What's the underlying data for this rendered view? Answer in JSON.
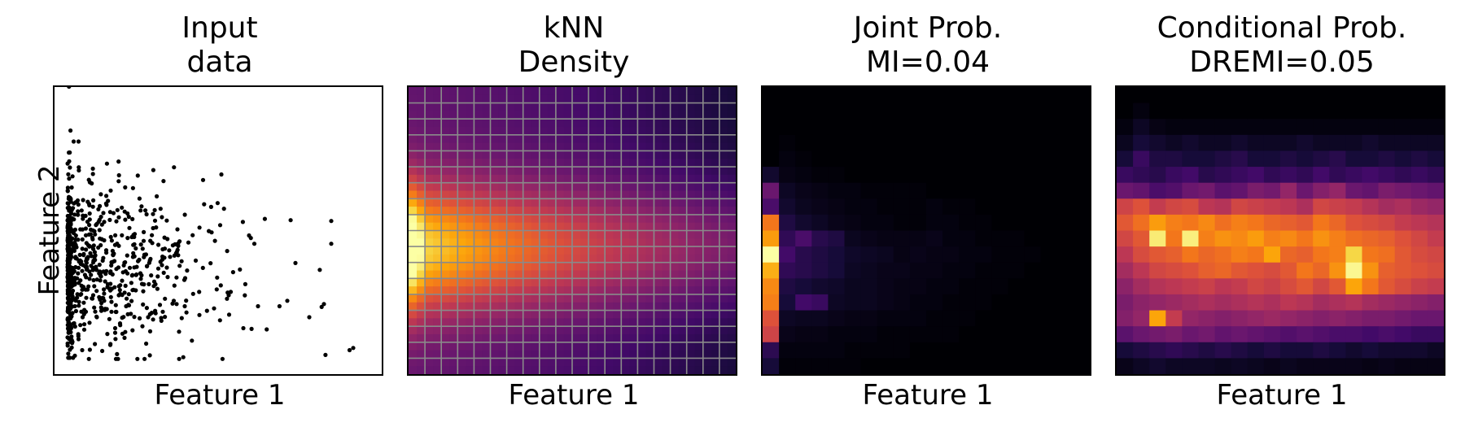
{
  "chart_data": [
    {
      "type": "scatter",
      "title_line1": "Input",
      "title_line2": "data",
      "xlabel": "Feature 1",
      "ylabel": "Feature 2",
      "xticks": [],
      "yticks": [],
      "grid": false,
      "point_color": "#000000",
      "points": [
        [
          0.1,
          0.05
        ],
        [
          0.2,
          0.1
        ],
        [
          0.15,
          0.2
        ],
        [
          0.05,
          0.3
        ],
        [
          0.3,
          0.35
        ],
        [
          0.25,
          0.45
        ],
        [
          0.4,
          0.4
        ],
        [
          0.1,
          0.5
        ],
        [
          0.5,
          0.55
        ],
        [
          0.6,
          0.45
        ],
        [
          0.35,
          0.6
        ],
        [
          0.7,
          0.6
        ],
        [
          0.2,
          0.65
        ],
        [
          0.55,
          0.7
        ],
        [
          0.45,
          0.8
        ],
        [
          0.8,
          0.5
        ],
        [
          0.9,
          0.65
        ],
        [
          1.0,
          0.75
        ],
        [
          1.1,
          0.4
        ],
        [
          0.65,
          0.3
        ],
        [
          0.75,
          0.25
        ],
        [
          0.3,
          0.75
        ],
        [
          0.15,
          0.85
        ],
        [
          0.05,
          0.95
        ],
        [
          1.3,
          0.45
        ],
        [
          1.45,
          0.55
        ],
        [
          1.6,
          0.5
        ],
        [
          1.8,
          0.42
        ],
        [
          2.0,
          0.48
        ],
        [
          2.2,
          0.6
        ],
        [
          2.4,
          0.3
        ],
        [
          2.6,
          0.5
        ],
        [
          3.0,
          0.55
        ],
        [
          3.3,
          0.4
        ],
        [
          3.5,
          0.52
        ],
        [
          3.85,
          0.1
        ],
        [
          3.9,
          0.12
        ],
        [
          1.2,
          0.7
        ],
        [
          0.85,
          0.85
        ],
        [
          0.6,
          0.9
        ],
        [
          0.02,
          1.2
        ],
        [
          0.02,
          1.4
        ],
        [
          0.02,
          1.1
        ],
        [
          0.03,
          1.9
        ],
        [
          0.04,
          2.1
        ],
        [
          0.02,
          2.5
        ],
        [
          1.85,
          1.65
        ],
        [
          0.5,
          1.1
        ],
        [
          0.7,
          1.05
        ],
        [
          1.5,
          1.2
        ],
        [
          2.1,
          1.7
        ],
        [
          1.4,
          0.95
        ],
        [
          0.4,
          1.25
        ],
        [
          0.9,
          1.15
        ]
      ]
    },
    {
      "type": "heatmap",
      "title_line1": "kNN",
      "title_line2": "Density",
      "xlabel": "Feature 1",
      "ylabel": "",
      "xticks": [],
      "yticks": [],
      "grid": true,
      "colormap": "inferno",
      "grid_color": "#8a8a8a"
    },
    {
      "type": "heatmap",
      "title_line1": "Joint Prob.",
      "title_line2": "MI=0.04",
      "xlabel": "Feature 1",
      "ylabel": "",
      "xticks": [],
      "yticks": [],
      "grid": false,
      "colormap": "inferno",
      "rows": [
        [
          0.0,
          0.0,
          0.0,
          0.0,
          0.0,
          0.0,
          0.0,
          0.0,
          0.0,
          0.0,
          0.0,
          0.0,
          0.0,
          0.0,
          0.0,
          0.0,
          0.0,
          0.0,
          0.0,
          0.0
        ],
        [
          0.0,
          0.0,
          0.0,
          0.0,
          0.0,
          0.0,
          0.0,
          0.0,
          0.0,
          0.0,
          0.0,
          0.0,
          0.0,
          0.0,
          0.0,
          0.0,
          0.0,
          0.0,
          0.0,
          0.0
        ],
        [
          0.0,
          0.0,
          0.0,
          0.0,
          0.0,
          0.0,
          0.0,
          0.0,
          0.0,
          0.0,
          0.0,
          0.0,
          0.0,
          0.0,
          0.0,
          0.0,
          0.0,
          0.0,
          0.0,
          0.0
        ],
        [
          0.0,
          0.01,
          0.0,
          0.0,
          0.0,
          0.0,
          0.0,
          0.0,
          0.0,
          0.0,
          0.0,
          0.0,
          0.0,
          0.0,
          0.0,
          0.0,
          0.0,
          0.0,
          0.0,
          0.0
        ],
        [
          0.0,
          0.02,
          0.01,
          0.0,
          0.0,
          0.0,
          0.0,
          0.0,
          0.0,
          0.0,
          0.0,
          0.0,
          0.0,
          0.0,
          0.0,
          0.0,
          0.0,
          0.0,
          0.0,
          0.0
        ],
        [
          0.08,
          0.03,
          0.02,
          0.01,
          0.01,
          0.0,
          0.0,
          0.0,
          0.0,
          0.0,
          0.0,
          0.0,
          0.0,
          0.0,
          0.0,
          0.0,
          0.0,
          0.0,
          0.0,
          0.0
        ],
        [
          0.3,
          0.06,
          0.04,
          0.03,
          0.02,
          0.02,
          0.01,
          0.01,
          0.01,
          0.01,
          0.0,
          0.0,
          0.0,
          0.0,
          0.0,
          0.0,
          0.0,
          0.0,
          0.0,
          0.0
        ],
        [
          0.22,
          0.08,
          0.05,
          0.04,
          0.03,
          0.02,
          0.02,
          0.01,
          0.01,
          0.01,
          0.02,
          0.01,
          0.01,
          0.0,
          0.0,
          0.0,
          0.0,
          0.0,
          0.0,
          0.0
        ],
        [
          0.7,
          0.12,
          0.08,
          0.06,
          0.04,
          0.03,
          0.02,
          0.02,
          0.01,
          0.01,
          0.02,
          0.02,
          0.01,
          0.01,
          0.0,
          0.0,
          0.0,
          0.0,
          0.0,
          0.0
        ],
        [
          0.78,
          0.16,
          0.22,
          0.14,
          0.12,
          0.05,
          0.04,
          0.03,
          0.03,
          0.03,
          0.04,
          0.02,
          0.02,
          0.01,
          0.01,
          0.01,
          0.0,
          0.0,
          0.0,
          0.0
        ],
        [
          1.0,
          0.2,
          0.14,
          0.12,
          0.1,
          0.07,
          0.06,
          0.05,
          0.03,
          0.04,
          0.03,
          0.03,
          0.02,
          0.02,
          0.01,
          0.01,
          0.01,
          0.0,
          0.0,
          0.0
        ],
        [
          0.82,
          0.16,
          0.14,
          0.12,
          0.1,
          0.06,
          0.05,
          0.04,
          0.04,
          0.03,
          0.03,
          0.02,
          0.02,
          0.01,
          0.01,
          0.01,
          0.0,
          0.0,
          0.0,
          0.0
        ],
        [
          0.74,
          0.12,
          0.1,
          0.08,
          0.07,
          0.05,
          0.05,
          0.04,
          0.03,
          0.03,
          0.02,
          0.02,
          0.01,
          0.01,
          0.01,
          0.0,
          0.0,
          0.0,
          0.0,
          0.0
        ],
        [
          0.72,
          0.1,
          0.2,
          0.18,
          0.06,
          0.05,
          0.05,
          0.04,
          0.03,
          0.02,
          0.02,
          0.01,
          0.01,
          0.01,
          0.0,
          0.0,
          0.0,
          0.0,
          0.0,
          0.0
        ],
        [
          0.6,
          0.06,
          0.05,
          0.05,
          0.04,
          0.03,
          0.03,
          0.02,
          0.02,
          0.02,
          0.01,
          0.01,
          0.01,
          0.0,
          0.0,
          0.0,
          0.0,
          0.0,
          0.0,
          0.0
        ],
        [
          0.55,
          0.04,
          0.03,
          0.03,
          0.02,
          0.02,
          0.02,
          0.01,
          0.01,
          0.01,
          0.01,
          0.01,
          0.0,
          0.0,
          0.0,
          0.0,
          0.0,
          0.0,
          0.0,
          0.0
        ],
        [
          0.15,
          0.02,
          0.02,
          0.02,
          0.02,
          0.01,
          0.01,
          0.01,
          0.01,
          0.0,
          0.0,
          0.0,
          0.0,
          0.0,
          0.0,
          0.0,
          0.0,
          0.0,
          0.0,
          0.0
        ],
        [
          0.1,
          0.01,
          0.01,
          0.01,
          0.01,
          0.01,
          0.0,
          0.0,
          0.0,
          0.0,
          0.0,
          0.0,
          0.0,
          0.0,
          0.0,
          0.0,
          0.0,
          0.0,
          0.0,
          0.0
        ]
      ]
    },
    {
      "type": "heatmap",
      "title_line1": "Conditional Prob.",
      "title_line2": "DREMI=0.05",
      "xlabel": "Feature 1",
      "ylabel": "",
      "xticks": [],
      "yticks": [],
      "grid": false,
      "colormap": "inferno",
      "rows": [
        [
          0.0,
          0.0,
          0.0,
          0.0,
          0.0,
          0.0,
          0.0,
          0.0,
          0.0,
          0.0,
          0.0,
          0.0,
          0.0,
          0.0,
          0.0,
          0.0,
          0.0,
          0.0,
          0.0,
          0.0
        ],
        [
          0.0,
          0.02,
          0.0,
          0.0,
          0.0,
          0.0,
          0.0,
          0.0,
          0.0,
          0.0,
          0.0,
          0.0,
          0.0,
          0.0,
          0.0,
          0.0,
          0.0,
          0.0,
          0.0,
          0.0
        ],
        [
          0.02,
          0.06,
          0.03,
          0.02,
          0.02,
          0.02,
          0.02,
          0.02,
          0.02,
          0.02,
          0.02,
          0.02,
          0.02,
          0.02,
          0.02,
          0.02,
          0.02,
          0.02,
          0.02,
          0.02
        ],
        [
          0.05,
          0.1,
          0.08,
          0.06,
          0.08,
          0.06,
          0.06,
          0.08,
          0.06,
          0.06,
          0.06,
          0.08,
          0.06,
          0.06,
          0.06,
          0.08,
          0.06,
          0.06,
          0.06,
          0.06
        ],
        [
          0.1,
          0.18,
          0.12,
          0.12,
          0.1,
          0.1,
          0.12,
          0.14,
          0.1,
          0.1,
          0.12,
          0.1,
          0.12,
          0.14,
          0.1,
          0.1,
          0.12,
          0.1,
          0.12,
          0.1
        ],
        [
          0.18,
          0.16,
          0.14,
          0.18,
          0.2,
          0.14,
          0.16,
          0.18,
          0.2,
          0.16,
          0.18,
          0.16,
          0.2,
          0.16,
          0.18,
          0.2,
          0.18,
          0.16,
          0.18,
          0.16
        ],
        [
          0.3,
          0.28,
          0.22,
          0.24,
          0.3,
          0.32,
          0.26,
          0.28,
          0.34,
          0.32,
          0.4,
          0.3,
          0.36,
          0.4,
          0.3,
          0.28,
          0.34,
          0.32,
          0.3,
          0.28
        ],
        [
          0.55,
          0.6,
          0.52,
          0.56,
          0.58,
          0.5,
          0.48,
          0.56,
          0.54,
          0.52,
          0.5,
          0.46,
          0.56,
          0.54,
          0.52,
          0.48,
          0.44,
          0.46,
          0.42,
          0.4
        ],
        [
          0.62,
          0.68,
          0.78,
          0.72,
          0.7,
          0.74,
          0.68,
          0.72,
          0.7,
          0.66,
          0.64,
          0.62,
          0.7,
          0.66,
          0.6,
          0.58,
          0.56,
          0.52,
          0.5,
          0.48
        ],
        [
          0.56,
          0.62,
          0.95,
          0.7,
          0.96,
          0.72,
          0.76,
          0.74,
          0.78,
          0.72,
          0.74,
          0.7,
          0.76,
          0.72,
          0.68,
          0.66,
          0.64,
          0.6,
          0.56,
          0.52
        ],
        [
          0.5,
          0.58,
          0.62,
          0.64,
          0.7,
          0.66,
          0.68,
          0.72,
          0.7,
          0.8,
          0.66,
          0.64,
          0.7,
          0.72,
          0.9,
          0.7,
          0.68,
          0.62,
          0.58,
          0.56
        ],
        [
          0.44,
          0.5,
          0.56,
          0.58,
          0.6,
          0.64,
          0.66,
          0.62,
          0.6,
          0.58,
          0.62,
          0.7,
          0.66,
          0.76,
          0.98,
          0.76,
          0.64,
          0.62,
          0.6,
          0.58
        ],
        [
          0.38,
          0.44,
          0.48,
          0.5,
          0.52,
          0.54,
          0.5,
          0.52,
          0.56,
          0.54,
          0.58,
          0.62,
          0.56,
          0.62,
          0.8,
          0.7,
          0.62,
          0.58,
          0.54,
          0.52
        ],
        [
          0.34,
          0.38,
          0.4,
          0.42,
          0.44,
          0.46,
          0.44,
          0.46,
          0.48,
          0.46,
          0.5,
          0.48,
          0.44,
          0.46,
          0.48,
          0.44,
          0.42,
          0.4,
          0.38,
          0.36
        ],
        [
          0.36,
          0.4,
          0.8,
          0.52,
          0.4,
          0.38,
          0.36,
          0.38,
          0.4,
          0.42,
          0.4,
          0.38,
          0.36,
          0.38,
          0.36,
          0.34,
          0.34,
          0.32,
          0.3,
          0.3
        ],
        [
          0.26,
          0.3,
          0.32,
          0.34,
          0.3,
          0.32,
          0.28,
          0.3,
          0.28,
          0.26,
          0.24,
          0.26,
          0.24,
          0.22,
          0.22,
          0.2,
          0.22,
          0.2,
          0.18,
          0.18
        ],
        [
          0.1,
          0.12,
          0.14,
          0.16,
          0.14,
          0.12,
          0.14,
          0.12,
          0.1,
          0.12,
          0.1,
          0.1,
          0.12,
          0.1,
          0.08,
          0.1,
          0.08,
          0.08,
          0.08,
          0.06
        ],
        [
          0.04,
          0.06,
          0.08,
          0.06,
          0.06,
          0.06,
          0.05,
          0.06,
          0.05,
          0.04,
          0.05,
          0.04,
          0.04,
          0.04,
          0.04,
          0.03,
          0.04,
          0.03,
          0.03,
          0.03
        ]
      ]
    }
  ]
}
